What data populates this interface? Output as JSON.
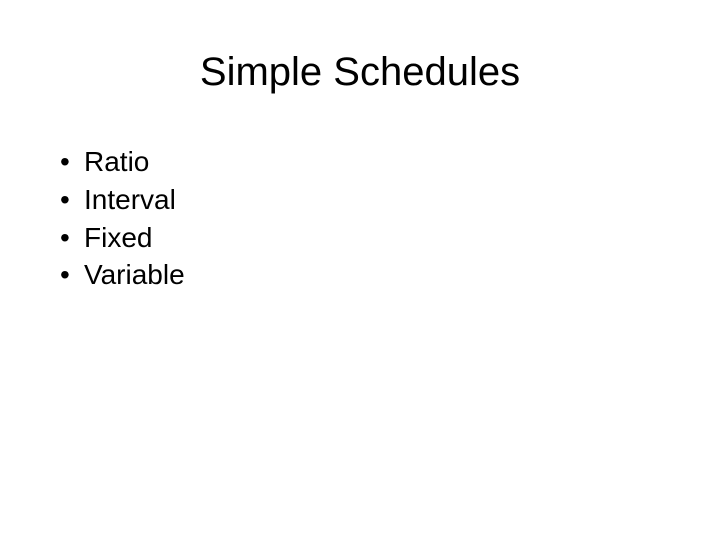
{
  "slide": {
    "title": "Simple Schedules",
    "bullets": [
      {
        "text": "Ratio"
      },
      {
        "text": "Interval"
      },
      {
        "text": "Fixed"
      },
      {
        "text": "Variable"
      }
    ],
    "style": {
      "background_color": "#ffffff",
      "text_color": "#000000",
      "title_fontsize": 40,
      "title_fontweight": 400,
      "bullet_fontsize": 28,
      "bullet_marker": "•",
      "font_family": "Arial, Helvetica, sans-serif"
    }
  }
}
